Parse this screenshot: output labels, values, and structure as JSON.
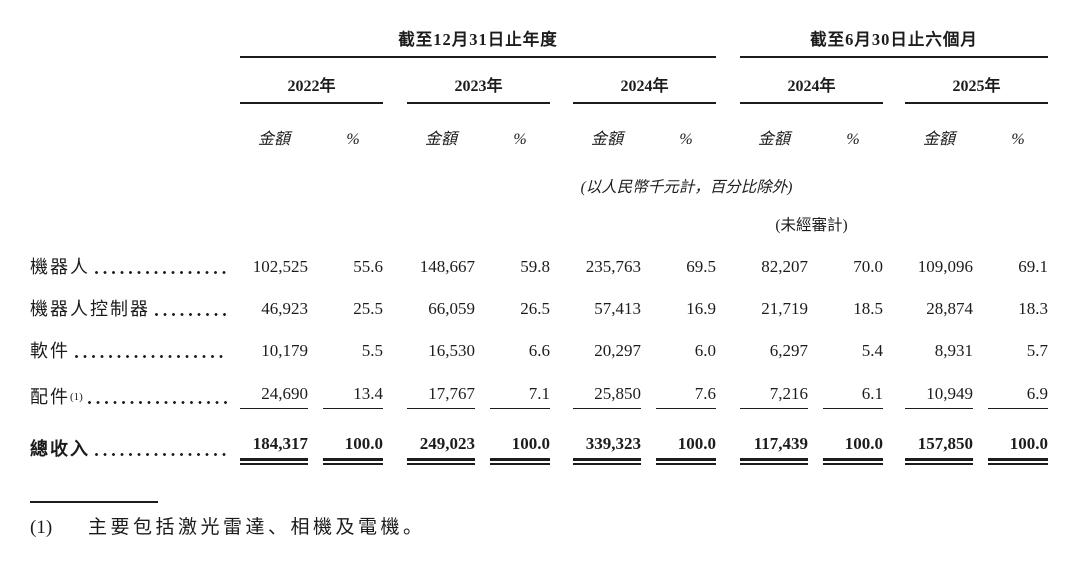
{
  "header": {
    "period1": "截至12月31日止年度",
    "period2": "截至6月30日止六個月",
    "years": [
      "2022年",
      "2023年",
      "2024年",
      "2024年",
      "2025年"
    ],
    "amount_label": "金額",
    "percent_label": "%",
    "units_note": "(以人民幣千元計，百分比除外)",
    "unaudited_note": "(未經審計)"
  },
  "rows": [
    {
      "label": "機器人",
      "sup": "",
      "values": [
        "102,525",
        "55.6",
        "148,667",
        "59.8",
        "235,763",
        "69.5",
        "82,207",
        "70.0",
        "109,096",
        "69.1"
      ]
    },
    {
      "label": "機器人控制器",
      "sup": "",
      "values": [
        "46,923",
        "25.5",
        "66,059",
        "26.5",
        "57,413",
        "16.9",
        "21,719",
        "18.5",
        "28,874",
        "18.3"
      ]
    },
    {
      "label": "軟件",
      "sup": "",
      "values": [
        "10,179",
        "5.5",
        "16,530",
        "6.6",
        "20,297",
        "6.0",
        "6,297",
        "5.4",
        "8,931",
        "5.7"
      ]
    },
    {
      "label": "配件",
      "sup": "(1)",
      "values": [
        "24,690",
        "13.4",
        "17,767",
        "7.1",
        "25,850",
        "7.6",
        "7,216",
        "6.1",
        "10,949",
        "6.9"
      ]
    }
  ],
  "total_row": {
    "label": "總收入",
    "values": [
      "184,317",
      "100.0",
      "249,023",
      "100.0",
      "339,323",
      "100.0",
      "117,439",
      "100.0",
      "157,850",
      "100.0"
    ]
  },
  "footnote": {
    "marker": "(1)",
    "text": "主要包括激光雷達、相機及電機。"
  }
}
